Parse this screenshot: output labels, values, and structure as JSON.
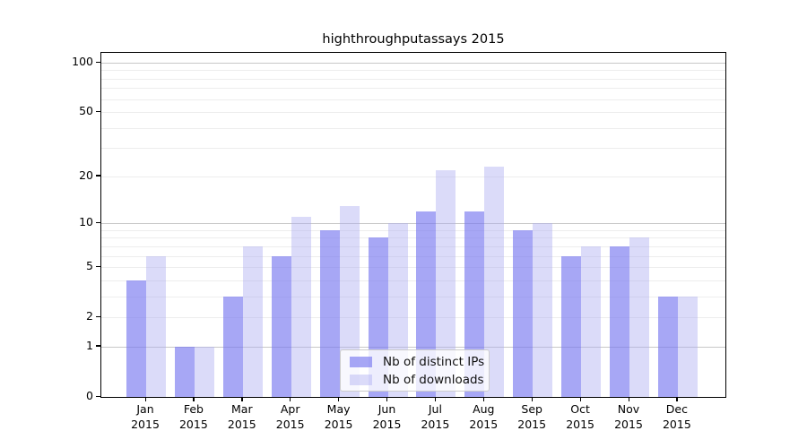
{
  "title": "highthroughputassays 2015",
  "chart_data": {
    "type": "bar",
    "title": "highthroughputassays 2015",
    "scale": "log1p",
    "ylim": [
      0,
      100
    ],
    "grid": true,
    "categories": [
      "Jan 2015",
      "Feb 2015",
      "Mar 2015",
      "Apr 2015",
      "May 2015",
      "Jun 2015",
      "Jul 2015",
      "Aug 2015",
      "Sep 2015",
      "Oct 2015",
      "Nov 2015",
      "Dec 2015"
    ],
    "x_tick_months": [
      "Jan",
      "Feb",
      "Mar",
      "Apr",
      "May",
      "Jun",
      "Jul",
      "Aug",
      "Sep",
      "Oct",
      "Nov",
      "Dec"
    ],
    "x_tick_year": "2015",
    "y_tick_values": [
      0,
      1,
      2,
      5,
      10,
      20,
      50,
      100
    ],
    "y_tick_labels": [
      "0",
      "1",
      "2",
      "5",
      "10",
      "20",
      "50",
      "100"
    ],
    "y_major_gridlines": [
      1,
      10,
      100
    ],
    "y_minor_gridlines": [
      2,
      3,
      4,
      5,
      6,
      7,
      8,
      9,
      20,
      30,
      40,
      50,
      60,
      70,
      80,
      90
    ],
    "series": [
      {
        "name": "Nb of distinct IPs",
        "color": "rgba(120,120,240,0.65)",
        "values": [
          4,
          1,
          3,
          6,
          9,
          8,
          12,
          12,
          9,
          6,
          7,
          3
        ]
      },
      {
        "name": "Nb of downloads",
        "color": "rgba(170,170,240,0.42)",
        "values": [
          6,
          1,
          7,
          11,
          13,
          10,
          22,
          23,
          10,
          7,
          8,
          3
        ]
      }
    ],
    "legend": {
      "position": "lower center",
      "entries": [
        "Nb of distinct IPs",
        "Nb of downloads"
      ]
    }
  }
}
